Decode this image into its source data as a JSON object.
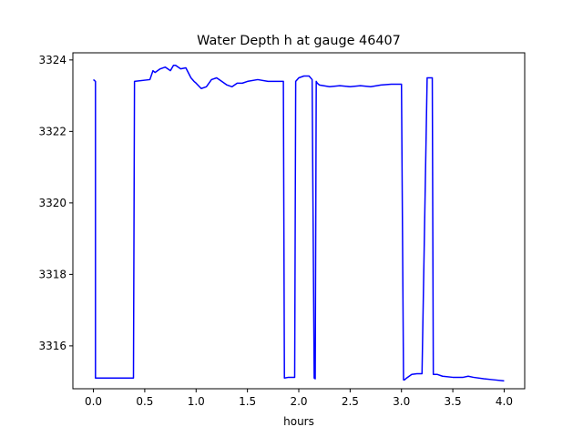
{
  "chart_data": {
    "type": "line",
    "title": "Water Depth h at gauge 46407",
    "xlabel": "hours",
    "ylabel": "",
    "xlim": [
      -0.2,
      4.2
    ],
    "ylim": [
      3314.8,
      3324.2
    ],
    "xticks": [
      0.0,
      0.5,
      1.0,
      1.5,
      2.0,
      2.5,
      3.0,
      3.5,
      4.0
    ],
    "xtick_labels": [
      "0.0",
      "0.5",
      "1.0",
      "1.5",
      "2.0",
      "2.5",
      "3.0",
      "3.5",
      "4.0"
    ],
    "yticks": [
      3316,
      3318,
      3320,
      3322,
      3324
    ],
    "ytick_labels": [
      "3316",
      "3318",
      "3320",
      "3322",
      "3324"
    ],
    "grid": false,
    "series": [
      {
        "color": "#0000ff",
        "x": [
          0.0,
          0.02,
          0.02,
          0.25,
          0.39,
          0.4,
          0.55,
          0.58,
          0.6,
          0.65,
          0.7,
          0.75,
          0.78,
          0.8,
          0.85,
          0.9,
          0.95,
          0.98,
          1.0,
          1.05,
          1.1,
          1.15,
          1.2,
          1.25,
          1.3,
          1.35,
          1.4,
          1.45,
          1.5,
          1.6,
          1.7,
          1.75,
          1.85,
          1.86,
          1.9,
          1.96,
          1.97,
          2.0,
          2.05,
          2.1,
          2.13,
          2.15,
          2.16,
          2.17,
          2.18,
          2.2,
          2.3,
          2.4,
          2.5,
          2.6,
          2.7,
          2.8,
          2.9,
          3.0,
          3.02,
          3.03,
          3.05,
          3.1,
          3.15,
          3.2,
          3.25,
          3.26,
          3.3,
          3.31,
          3.35,
          3.4,
          3.5,
          3.6,
          3.65,
          3.7,
          3.8,
          3.9,
          4.0
        ],
        "y": [
          3323.45,
          3323.4,
          3315.1,
          3315.1,
          3315.1,
          3323.4,
          3323.45,
          3323.7,
          3323.65,
          3323.75,
          3323.8,
          3323.7,
          3323.85,
          3323.85,
          3323.75,
          3323.78,
          3323.5,
          3323.4,
          3323.35,
          3323.2,
          3323.25,
          3323.45,
          3323.5,
          3323.4,
          3323.3,
          3323.25,
          3323.35,
          3323.35,
          3323.4,
          3323.45,
          3323.4,
          3323.4,
          3323.4,
          3315.1,
          3315.12,
          3315.12,
          3323.4,
          3323.5,
          3323.55,
          3323.55,
          3323.45,
          3315.1,
          3315.08,
          3323.4,
          3323.35,
          3323.3,
          3323.25,
          3323.28,
          3323.25,
          3323.28,
          3323.25,
          3323.3,
          3323.32,
          3323.32,
          3315.05,
          3315.05,
          3315.1,
          3315.2,
          3315.22,
          3315.22,
          3323.5,
          3323.5,
          3323.5,
          3315.2,
          3315.2,
          3315.15,
          3315.12,
          3315.12,
          3315.15,
          3315.12,
          3315.08,
          3315.05,
          3315.02
        ]
      }
    ]
  }
}
